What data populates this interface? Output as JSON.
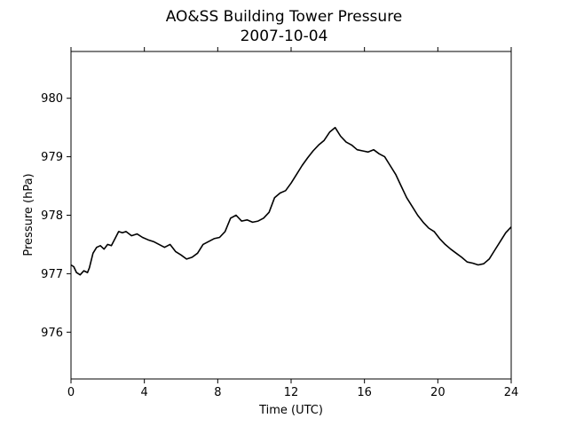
{
  "chart_data": {
    "type": "line",
    "title": "AO&SS Building Tower Pressure",
    "subtitle": "2007-10-04",
    "xlabel": "Time (UTC)",
    "ylabel": "Pressure (hPa)",
    "xlim": [
      0,
      24
    ],
    "ylim": [
      975.2,
      980.8
    ],
    "xticks": [
      0,
      4,
      8,
      12,
      16,
      20,
      24
    ],
    "yticks": [
      976,
      977,
      978,
      979,
      980
    ],
    "grid": false,
    "series": [
      {
        "color": "#000000",
        "x": [
          0,
          0.15,
          0.3,
          0.5,
          0.7,
          0.9,
          1.0,
          1.2,
          1.4,
          1.6,
          1.8,
          2.0,
          2.2,
          2.4,
          2.6,
          2.8,
          3.0,
          3.3,
          3.6,
          3.9,
          4.2,
          4.5,
          4.8,
          5.1,
          5.4,
          5.7,
          6.0,
          6.3,
          6.6,
          6.9,
          7.2,
          7.5,
          7.8,
          8.1,
          8.4,
          8.7,
          9.0,
          9.3,
          9.6,
          9.9,
          10.2,
          10.5,
          10.8,
          11.1,
          11.4,
          11.7,
          12.0,
          12.3,
          12.6,
          12.9,
          13.2,
          13.5,
          13.8,
          14.1,
          14.4,
          14.7,
          15.0,
          15.3,
          15.6,
          15.9,
          16.2,
          16.5,
          16.8,
          17.1,
          17.4,
          17.7,
          18.0,
          18.3,
          18.6,
          18.9,
          19.2,
          19.5,
          19.8,
          20.1,
          20.4,
          20.7,
          21.0,
          21.3,
          21.6,
          21.9,
          22.2,
          22.5,
          22.8,
          23.1,
          23.4,
          23.7,
          24.0
        ],
        "y": [
          977.15,
          977.12,
          977.02,
          976.98,
          977.05,
          977.02,
          977.1,
          977.35,
          977.45,
          977.48,
          977.42,
          977.5,
          977.48,
          977.6,
          977.72,
          977.7,
          977.72,
          977.65,
          977.68,
          977.62,
          977.58,
          977.55,
          977.5,
          977.45,
          977.5,
          977.38,
          977.32,
          977.25,
          977.28,
          977.35,
          977.5,
          977.55,
          977.6,
          977.62,
          977.72,
          977.95,
          978.0,
          977.9,
          977.92,
          977.88,
          977.9,
          977.95,
          978.05,
          978.3,
          978.38,
          978.42,
          978.55,
          978.7,
          978.85,
          978.98,
          979.1,
          979.2,
          979.28,
          979.42,
          979.5,
          979.35,
          979.25,
          979.2,
          979.12,
          979.1,
          979.08,
          979.12,
          979.05,
          979.0,
          978.85,
          978.7,
          978.5,
          978.3,
          978.15,
          978.0,
          977.88,
          977.78,
          977.72,
          977.6,
          977.5,
          977.42,
          977.35,
          977.28,
          977.2,
          977.18,
          977.15,
          977.17,
          977.25,
          977.4,
          977.55,
          977.7,
          977.8
        ]
      }
    ]
  }
}
